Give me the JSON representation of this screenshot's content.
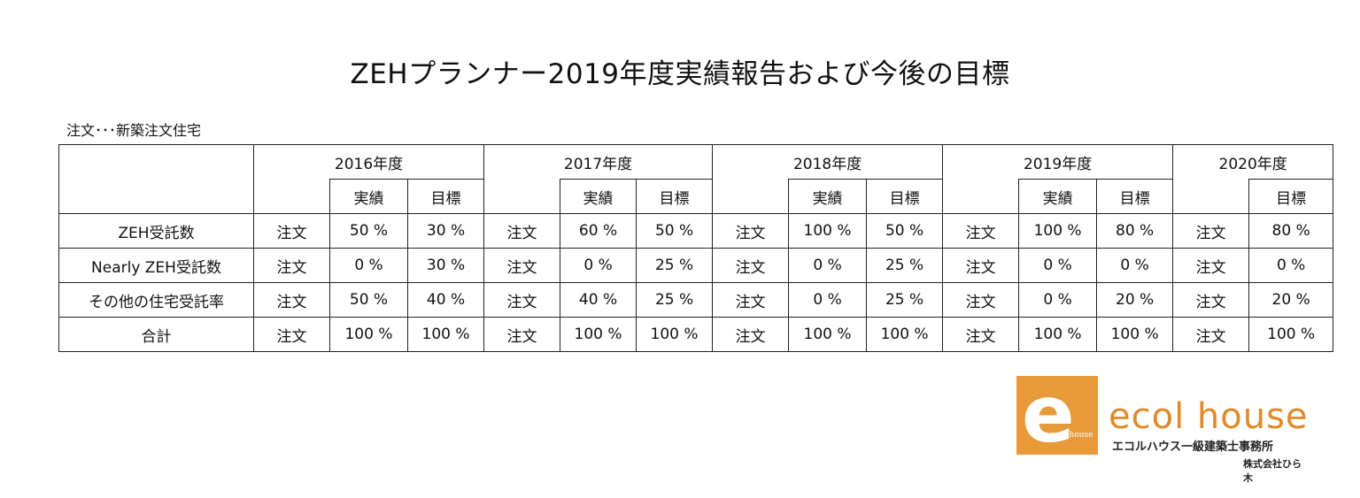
{
  "title": "ZEHプランナー2019年度実績報告および今後の目標",
  "note": "注文･･･新築注文住宅",
  "years": [
    "2016年度",
    "2017年度",
    "2018年度",
    "2019年度",
    "2020年度"
  ],
  "sub_headers": {
    "actual": "実績",
    "target": "目標"
  },
  "rows": [
    {
      "label": "ZEH受託数",
      "cells": [
        {
          "type": "注文",
          "actual": "50 %",
          "target": "30 %"
        },
        {
          "type": "注文",
          "actual": "60 %",
          "target": "50 %"
        },
        {
          "type": "注文",
          "actual": "100 %",
          "target": "50 %"
        },
        {
          "type": "注文",
          "actual": "100 %",
          "target": "80 %"
        },
        {
          "type": "注文",
          "target": "80 %"
        }
      ]
    },
    {
      "label": "Nearly ZEH受託数",
      "cells": [
        {
          "type": "注文",
          "actual": "0 %",
          "target": "30 %"
        },
        {
          "type": "注文",
          "actual": "0 %",
          "target": "25 %"
        },
        {
          "type": "注文",
          "actual": "0 %",
          "target": "25 %"
        },
        {
          "type": "注文",
          "actual": "0 %",
          "target": "0 %"
        },
        {
          "type": "注文",
          "target": "0 %"
        }
      ]
    },
    {
      "label": "その他の住宅受託率",
      "cells": [
        {
          "type": "注文",
          "actual": "50 %",
          "target": "40 %"
        },
        {
          "type": "注文",
          "actual": "40 %",
          "target": "25 %"
        },
        {
          "type": "注文",
          "actual": "0 %",
          "target": "25 %"
        },
        {
          "type": "注文",
          "actual": "0 %",
          "target": "20 %"
        },
        {
          "type": "注文",
          "target": "20 %"
        }
      ]
    },
    {
      "label": "合計",
      "cells": [
        {
          "type": "注文",
          "actual": "100 %",
          "target": "100 %"
        },
        {
          "type": "注文",
          "actual": "100 %",
          "target": "100 %"
        },
        {
          "type": "注文",
          "actual": "100 %",
          "target": "100 %"
        },
        {
          "type": "注文",
          "actual": "100 %",
          "target": "100 %"
        },
        {
          "type": "注文",
          "target": "100 %"
        }
      ]
    }
  ],
  "logo": {
    "mark": "e",
    "mini_text": "ecol house",
    "name": "ecol house",
    "subtitle": "エコルハウス一級建築士事務所",
    "company": "株式会社ひら木",
    "color": "#e89a3a"
  }
}
